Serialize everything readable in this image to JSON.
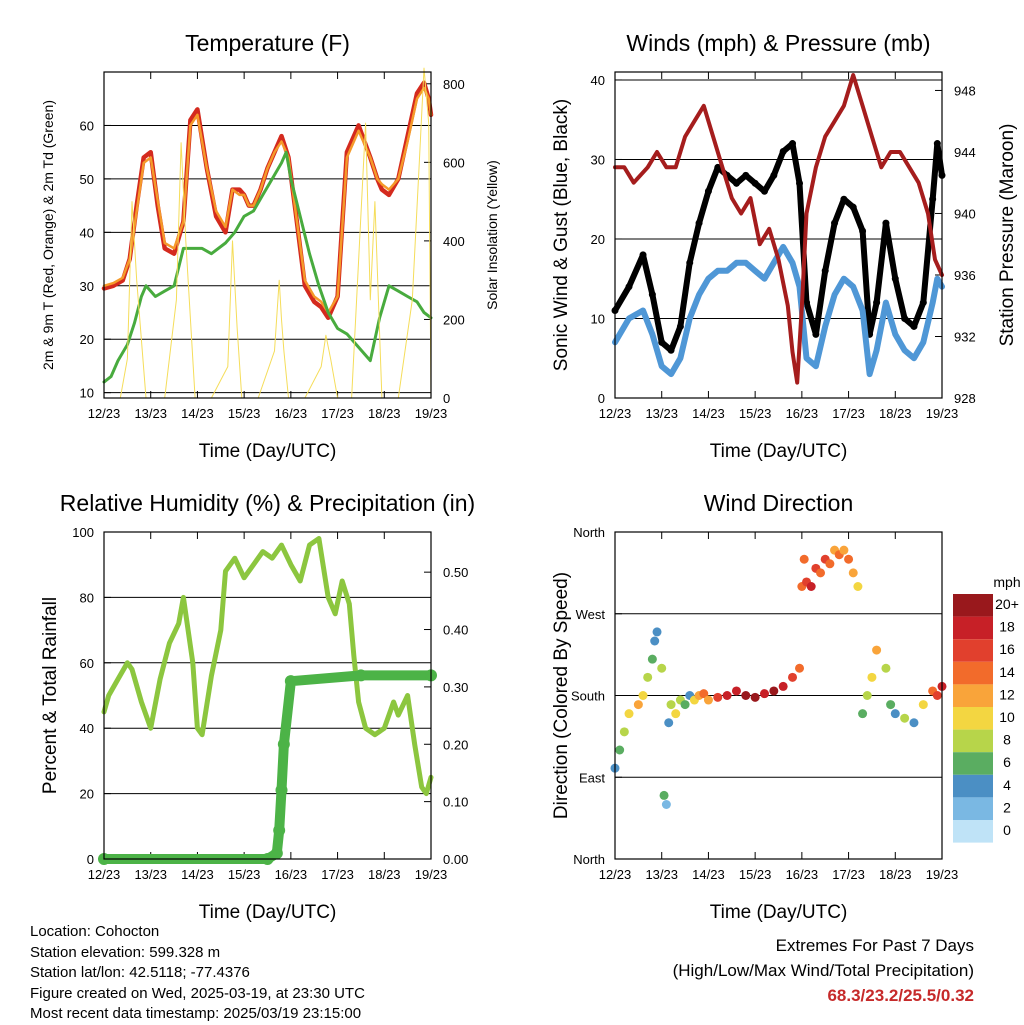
{
  "colors": {
    "temp_2m": "#d42a1e",
    "temp_9m": "#f59a2a",
    "dewpoint": "#48ab3e",
    "solar": "#f5dd5a",
    "gust": "#000000",
    "wind": "#4f97d6",
    "pressure": "#a51d1d",
    "rh": "#8cc63f",
    "precip": "#4cb347",
    "extremes_value": "#c62a2a"
  },
  "chart_data": [
    {
      "type": "line",
      "title": "Temperature (F)",
      "xlabel": "Time (Day/UTC)",
      "ylabel": "2m & 9m T (Red, Orange) & 2m Td (Green)",
      "ylabel_right": "Solar Insolation (Yellow)",
      "x_ticks": [
        "12/23",
        "13/23",
        "14/23",
        "15/23",
        "16/23",
        "17/23",
        "18/23",
        "19/23"
      ],
      "ylim": [
        9,
        70
      ],
      "y_ticks": [
        10,
        20,
        30,
        40,
        50,
        60
      ],
      "ylim_right": [
        0,
        830
      ],
      "y_ticks_right": [
        0,
        200,
        400,
        600,
        800
      ],
      "grid": "horizontal",
      "series": [
        {
          "name": "2m T",
          "axis": "left",
          "x": [
            0,
            0.2,
            0.4,
            0.55,
            0.7,
            0.85,
            1.0,
            1.15,
            1.3,
            1.5,
            1.7,
            1.85,
            2.0,
            2.2,
            2.4,
            2.6,
            2.75,
            2.9,
            3.0,
            3.1,
            3.2,
            3.35,
            3.5,
            3.65,
            3.8,
            3.95,
            4.1,
            4.3,
            4.5,
            4.65,
            4.8,
            5.0,
            5.2,
            5.45,
            5.7,
            5.85,
            5.95,
            6.1,
            6.3,
            6.5,
            6.7,
            6.85,
            6.95,
            7.0
          ],
          "y": [
            29.5,
            30,
            31,
            35,
            45,
            54,
            55,
            45,
            37,
            36,
            42,
            61,
            63,
            52,
            43,
            40,
            48,
            48,
            47,
            45,
            45,
            48,
            52,
            55,
            58,
            54,
            44,
            30,
            27,
            26,
            24,
            28,
            55,
            60,
            54,
            50,
            48,
            47,
            50,
            58,
            66,
            68,
            65,
            62
          ]
        },
        {
          "name": "9m T",
          "axis": "left",
          "x": [
            0,
            0.2,
            0.4,
            0.55,
            0.7,
            0.85,
            1.0,
            1.15,
            1.3,
            1.5,
            1.7,
            1.85,
            2.0,
            2.2,
            2.4,
            2.6,
            2.75,
            2.9,
            3.0,
            3.1,
            3.2,
            3.35,
            3.5,
            3.65,
            3.8,
            3.95,
            4.1,
            4.3,
            4.5,
            4.65,
            4.8,
            5.0,
            5.2,
            5.45,
            5.7,
            5.85,
            5.95,
            6.1,
            6.3,
            6.5,
            6.7,
            6.85,
            6.95,
            7.0
          ],
          "y": [
            30,
            30.5,
            31.5,
            35,
            44,
            53,
            54,
            46,
            38,
            37,
            42,
            60,
            62,
            52,
            44,
            41,
            48,
            47,
            47,
            45,
            45,
            48,
            52,
            55,
            57,
            54,
            44,
            31,
            28,
            27,
            25,
            28,
            54,
            59,
            54,
            50,
            49,
            48,
            50,
            57,
            65,
            67,
            65,
            62
          ]
        },
        {
          "name": "2m Td",
          "axis": "left",
          "x": [
            0,
            0.15,
            0.3,
            0.5,
            0.65,
            0.8,
            0.9,
            1.1,
            1.3,
            1.5,
            1.7,
            1.9,
            2.1,
            2.3,
            2.6,
            2.8,
            3.0,
            3.2,
            3.4,
            3.6,
            3.8,
            3.9,
            4.0,
            4.2,
            4.4,
            4.6,
            4.8,
            5.0,
            5.2,
            5.3,
            5.5,
            5.7,
            5.9,
            6.1,
            6.3,
            6.5,
            6.7,
            6.85,
            7.0
          ],
          "y": [
            12,
            13,
            16,
            19,
            23,
            28,
            30,
            28,
            29,
            30,
            37,
            37,
            37,
            36,
            38,
            40,
            43,
            44,
            47,
            50,
            53,
            55,
            50,
            43,
            36,
            30,
            25,
            22,
            21,
            20,
            18,
            16,
            24,
            30,
            29,
            28,
            27,
            25,
            24
          ]
        },
        {
          "name": "Solar",
          "axis": "right",
          "x": [
            0,
            0.35,
            0.5,
            0.6,
            0.7,
            0.9,
            1.3,
            1.55,
            1.65,
            1.75,
            1.95,
            2.3,
            2.65,
            2.75,
            2.85,
            2.95,
            3.3,
            3.65,
            3.75,
            3.8,
            3.85,
            3.95,
            4.3,
            4.65,
            4.75,
            4.85,
            5.0,
            5.3,
            5.6,
            5.7,
            5.8,
            5.95,
            6.3,
            6.6,
            6.75,
            6.85,
            6.95,
            7.0
          ],
          "y": [
            0,
            0,
            100,
            500,
            300,
            0,
            0,
            250,
            650,
            400,
            0,
            0,
            80,
            400,
            180,
            0,
            0,
            120,
            300,
            200,
            120,
            0,
            0,
            80,
            160,
            100,
            0,
            0,
            700,
            250,
            500,
            0,
            0,
            250,
            600,
            840,
            700,
            0
          ]
        }
      ]
    },
    {
      "type": "line",
      "title": "Winds (mph) & Pressure (mb)",
      "xlabel": "Time (Day/UTC)",
      "ylabel": "Sonic Wind & Gust (Blue, Black)",
      "ylabel_right": "Station Pressure (Maroon)",
      "x_ticks": [
        "12/23",
        "13/23",
        "14/23",
        "15/23",
        "16/23",
        "17/23",
        "18/23",
        "19/23"
      ],
      "ylim": [
        0,
        41
      ],
      "y_ticks": [
        0,
        10,
        20,
        30,
        40
      ],
      "ylim_right": [
        928,
        949.2
      ],
      "y_ticks_right": [
        928,
        932,
        936,
        940,
        944,
        948
      ],
      "grid": "horizontal",
      "series": [
        {
          "name": "Gust",
          "axis": "left",
          "x": [
            0,
            0.3,
            0.6,
            0.8,
            1.0,
            1.2,
            1.4,
            1.6,
            1.8,
            2.0,
            2.2,
            2.4,
            2.6,
            2.8,
            3.0,
            3.2,
            3.4,
            3.6,
            3.8,
            3.95,
            4.1,
            4.3,
            4.5,
            4.7,
            4.9,
            5.1,
            5.3,
            5.45,
            5.6,
            5.8,
            6.0,
            6.2,
            6.4,
            6.6,
            6.8,
            6.9,
            7.0
          ],
          "y": [
            11,
            14,
            18,
            13,
            7,
            6,
            9,
            17,
            22,
            26,
            29,
            28,
            27,
            28,
            27,
            26,
            28,
            31,
            32,
            27,
            12,
            8,
            16,
            22,
            25,
            24,
            21,
            8,
            12,
            22,
            15,
            10,
            9,
            12,
            25,
            32,
            28
          ]
        },
        {
          "name": "Wind",
          "axis": "left",
          "x": [
            0,
            0.3,
            0.6,
            0.8,
            1.0,
            1.2,
            1.4,
            1.6,
            1.8,
            2.0,
            2.2,
            2.4,
            2.6,
            2.8,
            3.0,
            3.2,
            3.4,
            3.6,
            3.8,
            3.95,
            4.1,
            4.3,
            4.5,
            4.7,
            4.9,
            5.1,
            5.3,
            5.45,
            5.6,
            5.8,
            6.0,
            6.2,
            6.4,
            6.6,
            6.8,
            6.9,
            7.0
          ],
          "y": [
            7,
            10,
            11,
            8,
            4,
            3,
            5,
            10,
            13,
            15,
            16,
            16,
            17,
            17,
            16,
            15,
            17,
            19,
            17,
            14,
            5,
            4,
            9,
            13,
            15,
            14,
            11,
            3,
            6,
            12,
            8,
            6,
            5,
            7,
            12,
            15,
            14
          ]
        },
        {
          "name": "Pressure",
          "axis": "right",
          "x": [
            0,
            0.2,
            0.4,
            0.7,
            0.9,
            1.1,
            1.3,
            1.5,
            1.7,
            1.9,
            2.1,
            2.3,
            2.5,
            2.7,
            2.9,
            3.1,
            3.3,
            3.5,
            3.7,
            3.8,
            3.9,
            4.0,
            4.1,
            4.3,
            4.5,
            4.7,
            4.9,
            5.1,
            5.3,
            5.5,
            5.7,
            5.9,
            6.1,
            6.3,
            6.5,
            6.7,
            6.85,
            7.0
          ],
          "y": [
            943,
            943,
            942,
            943,
            944,
            943,
            943,
            945,
            946,
            947,
            945,
            943,
            941,
            940,
            941,
            938,
            939,
            937,
            934,
            931,
            929,
            934,
            940,
            943,
            945,
            946,
            947,
            949,
            947,
            945,
            943,
            944,
            944,
            943,
            942,
            940,
            937,
            936
          ]
        }
      ]
    },
    {
      "type": "line",
      "title": "Relative Humidity (%) & Precipitation (in)",
      "xlabel": "Time (Day/UTC)",
      "ylabel": "Percent & Total Rainfall",
      "x_ticks": [
        "12/23",
        "13/23",
        "14/23",
        "15/23",
        "16/23",
        "17/23",
        "18/23",
        "19/23"
      ],
      "ylim": [
        0,
        100
      ],
      "y_ticks": [
        0,
        20,
        40,
        60,
        80,
        100
      ],
      "ylim_right": [
        0,
        0.57
      ],
      "y_ticks_right": [
        "0.00",
        "0.10",
        "0.20",
        "0.30",
        "0.40",
        "0.50"
      ],
      "grid": "horizontal",
      "series": [
        {
          "name": "RH",
          "axis": "left",
          "x": [
            0,
            0.1,
            0.3,
            0.5,
            0.6,
            0.8,
            1.0,
            1.2,
            1.4,
            1.6,
            1.7,
            1.9,
            2.0,
            2.1,
            2.3,
            2.5,
            2.6,
            2.8,
            3.0,
            3.2,
            3.4,
            3.6,
            3.8,
            4.0,
            4.2,
            4.4,
            4.6,
            4.8,
            4.95,
            5.1,
            5.25,
            5.35,
            5.45,
            5.6,
            5.8,
            6.0,
            6.2,
            6.3,
            6.5,
            6.65,
            6.8,
            6.9,
            7.0
          ],
          "y": [
            45,
            50,
            55,
            60,
            58,
            48,
            40,
            55,
            66,
            72,
            80,
            60,
            40,
            38,
            56,
            70,
            88,
            92,
            86,
            90,
            94,
            92,
            96,
            90,
            85,
            96,
            98,
            80,
            75,
            85,
            78,
            62,
            48,
            40,
            38,
            40,
            48,
            44,
            50,
            35,
            22,
            20,
            25
          ]
        },
        {
          "name": "Precipitation",
          "axis": "right",
          "x": [
            0,
            3.5,
            3.7,
            3.75,
            3.8,
            3.85,
            4.0,
            5.5,
            7.0
          ],
          "y": [
            0,
            0,
            0.01,
            0.05,
            0.12,
            0.2,
            0.31,
            0.32,
            0.32
          ]
        }
      ]
    },
    {
      "type": "scatter",
      "title": "Wind Direction",
      "xlabel": "Time (Day/UTC)",
      "ylabel": "Direction (Colored By Speed)",
      "x_ticks": [
        "12/23",
        "13/23",
        "14/23",
        "15/23",
        "16/23",
        "17/23",
        "18/23",
        "19/23"
      ],
      "y_ticks": [
        "North",
        "East",
        "South",
        "West",
        "North"
      ],
      "ylim": [
        0,
        360
      ],
      "grid": "horizontal",
      "colorbar": {
        "title": "mph",
        "labels": [
          "20+",
          "18",
          "16",
          "14",
          "12",
          "10",
          "8",
          "6",
          "4",
          "2",
          "0"
        ],
        "colors": [
          "#99181c",
          "#c72027",
          "#e1402d",
          "#f26b2b",
          "#f9a43a",
          "#f3d641",
          "#b7d54a",
          "#5aad61",
          "#4b8fc4",
          "#7ab8e3",
          "#bfe3f7"
        ]
      },
      "points": {
        "x": [
          0,
          0.1,
          0.2,
          0.3,
          0.5,
          0.6,
          0.7,
          0.8,
          0.85,
          0.9,
          1.0,
          1.05,
          1.1,
          1.15,
          1.2,
          1.3,
          1.4,
          1.5,
          1.6,
          1.7,
          1.8,
          1.9,
          2.0,
          2.2,
          2.4,
          2.6,
          2.8,
          3.0,
          3.2,
          3.4,
          3.6,
          3.8,
          3.95,
          4.0,
          4.05,
          4.1,
          4.2,
          4.3,
          4.4,
          4.5,
          4.6,
          4.7,
          4.8,
          4.9,
          5.0,
          5.1,
          5.2,
          5.3,
          5.4,
          5.5,
          5.6,
          5.8,
          5.9,
          6.0,
          6.2,
          6.4,
          6.6,
          6.8,
          6.9,
          7.0
        ],
        "y": [
          100,
          120,
          140,
          160,
          170,
          180,
          200,
          220,
          240,
          250,
          210,
          70,
          60,
          150,
          170,
          160,
          175,
          170,
          180,
          175,
          180,
          182,
          175,
          178,
          180,
          185,
          180,
          178,
          182,
          185,
          190,
          200,
          210,
          300,
          330,
          305,
          300,
          320,
          315,
          330,
          325,
          340,
          335,
          340,
          330,
          315,
          300,
          160,
          180,
          200,
          230,
          210,
          170,
          160,
          155,
          150,
          170,
          185,
          180,
          190
        ],
        "speed": [
          4,
          6,
          8,
          10,
          12,
          10,
          8,
          6,
          5,
          4,
          8,
          6,
          3,
          5,
          9,
          10,
          8,
          6,
          4,
          10,
          12,
          14,
          12,
          16,
          18,
          18,
          20,
          20,
          18,
          20,
          18,
          16,
          14,
          15,
          14,
          16,
          18,
          16,
          14,
          16,
          14,
          12,
          14,
          12,
          14,
          12,
          10,
          6,
          8,
          10,
          12,
          9,
          6,
          4,
          8,
          5,
          10,
          14,
          16,
          18
        ]
      }
    }
  ],
  "station_info": {
    "location": "Location: Cohocton",
    "elevation": "Station elevation: 599.328 m",
    "latlon": "Station lat/lon: 42.5118; -77.4376",
    "created": "Figure created on Wed, 2025-03-19, at 23:30 UTC",
    "latest": "Most recent data timestamp: 2025/03/19 23:15:00"
  },
  "extremes": {
    "title": "Extremes For Past 7 Days",
    "subtitle": "(High/Low/Max Wind/Total Precipitation)",
    "values": "68.3/23.2/25.5/0.32"
  }
}
